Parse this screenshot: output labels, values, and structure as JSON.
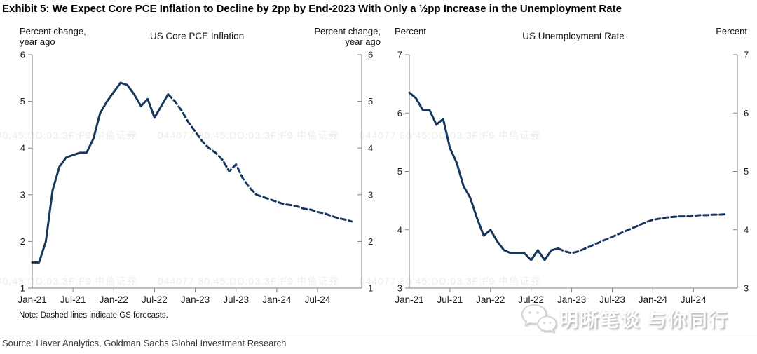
{
  "page": {
    "title": "Exhibit 5: We Expect Core PCE Inflation to Decline by 2pp by End-2023 With Only a ½pp Increase in the Unemployment Rate",
    "note": "Note: Dashed lines indicate GS forecasts.",
    "source": "Source: Haver Analytics, Goldman Sachs Global Investment Research",
    "watermark_tile": "044077   80:45:DD:03:3F:F9   中信证券",
    "brand_watermark": "明晰笔谈 与你同行"
  },
  "chart_data": [
    {
      "type": "line",
      "title": "US Core PCE Inflation",
      "ylabel_left": "Percent change,\nyear ago",
      "ylabel_right": "Percent change,\nyear ago",
      "ylim": [
        1,
        6
      ],
      "yticks": [
        1,
        2,
        3,
        4,
        5,
        6
      ],
      "xticks": [
        "Jan-21",
        "Jul-21",
        "Jan-22",
        "Jul-22",
        "Jan-23",
        "Jul-23",
        "Jan-24",
        "Jul-24"
      ],
      "x_start": "Jan-21",
      "x_freq": "monthly",
      "grid": false,
      "line_color": "#17375e",
      "annotation": "Dashed segment = GS forecast",
      "series": [
        {
          "name": "US Core PCE Inflation (actual + GS forecast)",
          "solid_until_index": 20,
          "forecast_start": "Oct-22",
          "values": [
            1.55,
            1.55,
            2.0,
            3.1,
            3.6,
            3.8,
            3.85,
            3.9,
            3.9,
            4.2,
            4.75,
            5.0,
            5.2,
            5.4,
            5.35,
            5.15,
            4.9,
            5.05,
            4.65,
            4.9,
            5.15,
            5.0,
            4.8,
            4.55,
            4.35,
            4.15,
            4.0,
            3.9,
            3.75,
            3.5,
            3.65,
            3.35,
            3.15,
            3.0,
            2.95,
            2.9,
            2.85,
            2.8,
            2.78,
            2.75,
            2.7,
            2.68,
            2.63,
            2.6,
            2.55,
            2.5,
            2.47,
            2.43
          ]
        }
      ]
    },
    {
      "type": "line",
      "title": "US Unemployment Rate",
      "ylabel_left": "Percent",
      "ylabel_right": "Percent",
      "ylim": [
        3,
        7
      ],
      "yticks": [
        3,
        4,
        5,
        6,
        7
      ],
      "xticks": [
        "Jan-21",
        "Jul-21",
        "Jan-22",
        "Jul-22",
        "Jan-23",
        "Jul-23",
        "Jan-24",
        "Jul-24"
      ],
      "x_start": "Jan-21",
      "x_freq": "monthly",
      "grid": false,
      "line_color": "#17375e",
      "annotation": "Dashed segment = GS forecast",
      "series": [
        {
          "name": "US Unemployment Rate (actual + GS forecast)",
          "solid_until_index": 22,
          "forecast_start": "Dec-22",
          "values": [
            6.35,
            6.25,
            6.05,
            6.05,
            5.8,
            5.9,
            5.4,
            5.15,
            4.75,
            4.55,
            4.2,
            3.9,
            4.0,
            3.8,
            3.65,
            3.6,
            3.6,
            3.6,
            3.48,
            3.65,
            3.48,
            3.65,
            3.68,
            3.63,
            3.6,
            3.63,
            3.68,
            3.73,
            3.78,
            3.83,
            3.88,
            3.93,
            3.98,
            4.03,
            4.08,
            4.13,
            4.17,
            4.19,
            4.21,
            4.22,
            4.23,
            4.23,
            4.24,
            4.25,
            4.25,
            4.26,
            4.26,
            4.27
          ]
        }
      ]
    }
  ]
}
